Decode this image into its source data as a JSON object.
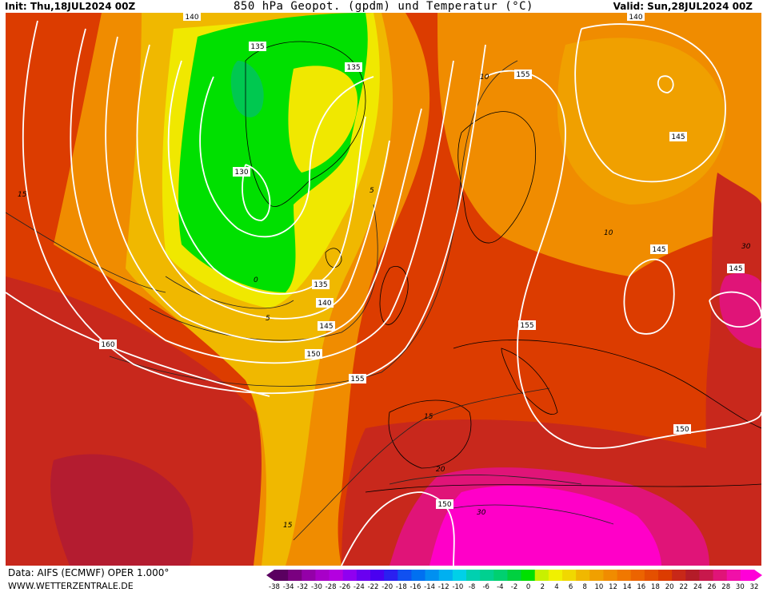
{
  "header": {
    "init": "Init: Thu,18JUL2024 00Z",
    "title": "850 hPa Geopot. (gpdm) und Temperatur (°C)",
    "valid": "Valid: Sun,28JUL2024 00Z"
  },
  "footer": {
    "data_source": "Data: AIFS (ECMWF) OPER 1.000°",
    "website": "WWW.WETTERZENTRALE.DE"
  },
  "legend": {
    "unit": "°C",
    "ticks": [
      "-38",
      "-34",
      "-32",
      "-30",
      "-28",
      "-26",
      "-24",
      "-22",
      "-20",
      "-18",
      "-16",
      "-14",
      "-12",
      "-10",
      "-8",
      "-6",
      "-4",
      "-2",
      "0",
      "2",
      "4",
      "6",
      "8",
      "10",
      "12",
      "14",
      "16",
      "18",
      "20",
      "22",
      "24",
      "26",
      "28",
      "30",
      "32"
    ],
    "colors": [
      "#5a0060",
      "#7a0080",
      "#9400a8",
      "#a800c8",
      "#b400e0",
      "#9000f0",
      "#6a00f0",
      "#4a00f0",
      "#2a20f0",
      "#1050f0",
      "#0070f0",
      "#0090f0",
      "#00b0f0",
      "#00d0e8",
      "#00d0b0",
      "#00d090",
      "#00d070",
      "#00d040",
      "#00e000",
      "#c8f000",
      "#f0f000",
      "#f0d800",
      "#f0b800",
      "#f0a000",
      "#f08c00",
      "#f07800",
      "#ec6400",
      "#e45000",
      "#dc3c00",
      "#c82818",
      "#b41c28",
      "#c8184c",
      "#e01478",
      "#f010a8",
      "#ff00d8"
    ]
  },
  "map": {
    "height_contours_gpdm": [
      "130",
      "135",
      "135",
      "135",
      "140",
      "140",
      "140",
      "145",
      "145",
      "145",
      "145",
      "150",
      "150",
      "150",
      "155",
      "155",
      "155",
      "160"
    ],
    "temperature_contours_c": [
      "0",
      "5",
      "5",
      "10",
      "10",
      "15",
      "15",
      "15",
      "20",
      "30",
      "30"
    ],
    "colors": {
      "very_hot": "#ff00c8",
      "hot": "#c8183c",
      "warm": "#e45a10",
      "mild": "#f08c00",
      "cool": "#f0c000",
      "cold": "#e8f000",
      "colder": "#00e000",
      "coldest": "#00c850"
    }
  }
}
